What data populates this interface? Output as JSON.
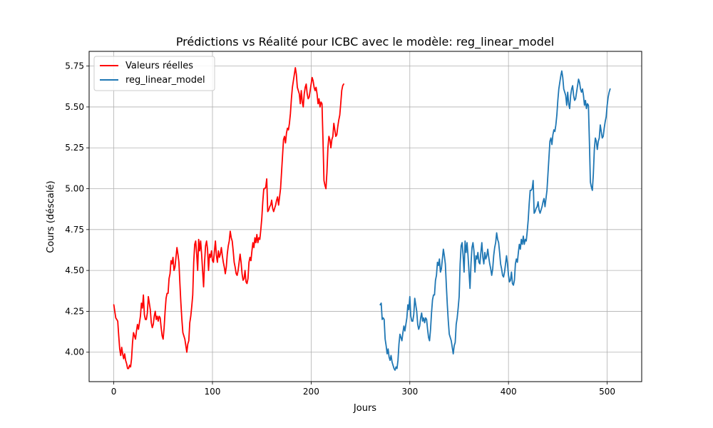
{
  "chart_data": {
    "type": "line",
    "title": "Prédictions vs Réalité pour ICBC avec le modèle: reg_linear_model",
    "xlabel": "Jours",
    "ylabel": "Cours (déscalé)",
    "xlim": [
      -25,
      535
    ],
    "ylim": [
      3.82,
      5.84
    ],
    "xticks": [
      0,
      100,
      200,
      300,
      400,
      500
    ],
    "yticks": [
      4.0,
      4.25,
      4.5,
      4.75,
      5.0,
      5.25,
      5.5,
      5.75
    ],
    "grid": true,
    "legend_position": "top-left",
    "series": [
      {
        "name": "Valeurs réelles",
        "color": "#ff0000",
        "x_start": 0,
        "values": [
          4.29,
          4.25,
          4.21,
          4.2,
          4.19,
          4.1,
          4.02,
          3.98,
          4.03,
          3.99,
          3.96,
          3.99,
          3.95,
          3.93,
          3.9,
          3.9,
          3.92,
          3.91,
          3.96,
          4.06,
          4.12,
          4.1,
          4.08,
          4.13,
          4.17,
          4.14,
          4.18,
          4.22,
          4.3,
          4.27,
          4.35,
          4.23,
          4.2,
          4.2,
          4.24,
          4.34,
          4.3,
          4.26,
          4.18,
          4.15,
          4.17,
          4.22,
          4.25,
          4.2,
          4.22,
          4.19,
          4.22,
          4.21,
          4.15,
          4.1,
          4.08,
          4.15,
          4.25,
          4.33,
          4.36,
          4.36,
          4.45,
          4.48,
          4.56,
          4.54,
          4.58,
          4.5,
          4.52,
          4.58,
          4.64,
          4.6,
          4.55,
          4.42,
          4.3,
          4.2,
          4.12,
          4.1,
          4.08,
          4.04,
          4.0,
          4.05,
          4.07,
          4.18,
          4.22,
          4.28,
          4.35,
          4.55,
          4.66,
          4.68,
          4.6,
          4.5,
          4.69,
          4.62,
          4.68,
          4.6,
          4.5,
          4.4,
          4.55,
          4.65,
          4.68,
          4.63,
          4.5,
          4.6,
          4.58,
          4.62,
          4.56,
          4.55,
          4.62,
          4.68,
          4.59,
          4.55,
          4.62,
          4.58,
          4.6,
          4.64,
          4.59,
          4.55,
          4.52,
          4.48,
          4.52,
          4.6,
          4.65,
          4.68,
          4.74,
          4.7,
          4.68,
          4.62,
          4.55,
          4.52,
          4.48,
          4.47,
          4.5,
          4.55,
          4.6,
          4.55,
          4.48,
          4.44,
          4.45,
          4.5,
          4.43,
          4.42,
          4.45,
          4.55,
          4.58,
          4.56,
          4.62,
          4.67,
          4.64,
          4.7,
          4.67,
          4.72,
          4.67,
          4.7,
          4.69,
          4.75,
          4.82,
          4.92,
          5.0,
          5.0,
          5.01,
          5.06,
          4.86,
          4.87,
          4.89,
          4.9,
          4.93,
          4.88,
          4.86,
          4.88,
          4.9,
          4.93,
          4.95,
          4.9,
          4.95,
          5.0,
          5.1,
          5.2,
          5.3,
          5.32,
          5.28,
          5.34,
          5.37,
          5.36,
          5.4,
          5.46,
          5.55,
          5.62,
          5.66,
          5.7,
          5.74,
          5.7,
          5.62,
          5.6,
          5.58,
          5.52,
          5.6,
          5.53,
          5.5,
          5.58,
          5.62,
          5.64,
          5.58,
          5.55,
          5.56,
          5.6,
          5.64,
          5.68,
          5.66,
          5.62,
          5.6,
          5.62,
          5.58,
          5.52,
          5.55,
          5.5,
          5.53,
          5.52,
          5.3,
          5.05,
          5.02,
          5.0,
          5.1,
          5.25,
          5.32,
          5.3,
          5.25,
          5.3,
          5.32,
          5.4,
          5.36,
          5.32,
          5.33,
          5.38,
          5.42,
          5.45,
          5.52,
          5.6,
          5.63,
          5.64
        ]
      },
      {
        "name": "reg_linear_model",
        "color": "#1f77b4",
        "x_start": 270,
        "values": [
          4.29,
          4.3,
          4.2,
          4.21,
          4.2,
          4.08,
          4.04,
          3.99,
          4.02,
          3.97,
          3.95,
          3.98,
          3.94,
          3.92,
          3.9,
          3.89,
          3.91,
          3.9,
          3.95,
          4.05,
          4.11,
          4.09,
          4.07,
          4.12,
          4.16,
          4.13,
          4.17,
          4.21,
          4.29,
          4.26,
          4.34,
          4.22,
          4.19,
          4.19,
          4.23,
          4.33,
          4.29,
          4.25,
          4.17,
          4.14,
          4.16,
          4.21,
          4.24,
          4.19,
          4.21,
          4.18,
          4.21,
          4.2,
          4.14,
          4.09,
          4.07,
          4.14,
          4.24,
          4.32,
          4.35,
          4.35,
          4.44,
          4.47,
          4.55,
          4.53,
          4.57,
          4.49,
          4.51,
          4.57,
          4.63,
          4.59,
          4.54,
          4.41,
          4.29,
          4.19,
          4.11,
          4.09,
          4.07,
          4.03,
          3.99,
          4.04,
          4.06,
          4.17,
          4.21,
          4.27,
          4.34,
          4.54,
          4.65,
          4.67,
          4.59,
          4.49,
          4.68,
          4.61,
          4.67,
          4.59,
          4.49,
          4.39,
          4.54,
          4.64,
          4.67,
          4.62,
          4.49,
          4.59,
          4.57,
          4.61,
          4.55,
          4.54,
          4.61,
          4.67,
          4.58,
          4.54,
          4.61,
          4.57,
          4.59,
          4.63,
          4.58,
          4.54,
          4.51,
          4.47,
          4.51,
          4.59,
          4.64,
          4.67,
          4.73,
          4.69,
          4.67,
          4.61,
          4.54,
          4.51,
          4.47,
          4.46,
          4.49,
          4.54,
          4.59,
          4.54,
          4.47,
          4.43,
          4.44,
          4.49,
          4.42,
          4.41,
          4.44,
          4.54,
          4.57,
          4.55,
          4.61,
          4.66,
          4.63,
          4.69,
          4.66,
          4.71,
          4.66,
          4.69,
          4.68,
          4.74,
          4.81,
          4.91,
          4.99,
          4.99,
          5.0,
          5.05,
          4.85,
          4.86,
          4.88,
          4.89,
          4.92,
          4.87,
          4.85,
          4.87,
          4.89,
          4.92,
          4.94,
          4.89,
          4.94,
          4.99,
          5.09,
          5.19,
          5.29,
          5.31,
          5.27,
          5.33,
          5.36,
          5.35,
          5.39,
          5.45,
          5.54,
          5.61,
          5.65,
          5.69,
          5.72,
          5.68,
          5.61,
          5.59,
          5.57,
          5.51,
          5.59,
          5.52,
          5.49,
          5.57,
          5.61,
          5.63,
          5.57,
          5.54,
          5.55,
          5.59,
          5.63,
          5.67,
          5.65,
          5.61,
          5.59,
          5.61,
          5.57,
          5.51,
          5.54,
          5.49,
          5.52,
          5.51,
          5.29,
          5.04,
          5.01,
          4.99,
          5.09,
          5.24,
          5.31,
          5.29,
          5.24,
          5.29,
          5.31,
          5.39,
          5.35,
          5.31,
          5.32,
          5.37,
          5.41,
          5.44,
          5.51,
          5.56,
          5.59,
          5.61
        ]
      }
    ]
  }
}
